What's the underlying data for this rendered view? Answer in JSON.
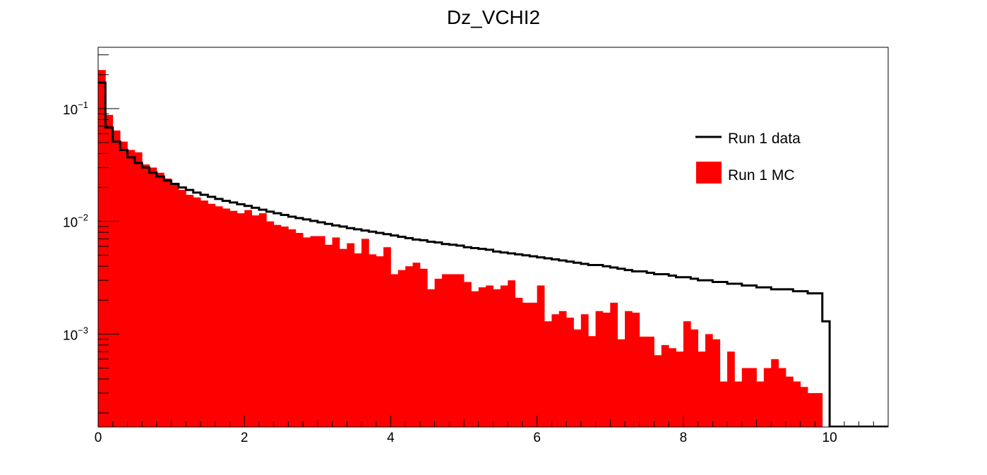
{
  "chart_data": {
    "type": "bar",
    "title": "Dz_VCHI2",
    "xlabel": "",
    "ylabel": "",
    "xlim": [
      0,
      10.8
    ],
    "ylim": [
      0.00015,
      0.35
    ],
    "yscale": "log",
    "x_ticks": [
      0,
      2,
      4,
      6,
      8,
      10
    ],
    "x_tick_labels": [
      "0",
      "2",
      "4",
      "6",
      "8",
      "10"
    ],
    "y_ticks": [
      0.001,
      0.01,
      0.1
    ],
    "y_tick_labels": [
      {
        "base": "10",
        "exp": "−3"
      },
      {
        "base": "10",
        "exp": "−2"
      },
      {
        "base": "10",
        "exp": "−1"
      }
    ],
    "bin_edges_start": 0,
    "bin_width": 0.1,
    "legend": {
      "position": "top-right",
      "entries": [
        {
          "label": "Run 1 data",
          "style": "line",
          "color": "#000000"
        },
        {
          "label": "Run 1 MC",
          "style": "fill",
          "color": "#ff0000"
        }
      ]
    },
    "series": [
      {
        "name": "Run 1 MC",
        "style": "filled-histogram",
        "color": "#ff0000",
        "values": [
          0.22,
          0.088,
          0.064,
          0.051,
          0.043,
          0.041,
          0.032,
          0.03,
          0.027,
          0.024,
          0.0215,
          0.019,
          0.0172,
          0.0163,
          0.0153,
          0.0143,
          0.0136,
          0.013,
          0.0124,
          0.0118,
          0.0126,
          0.0113,
          0.0118,
          0.01,
          0.0093,
          0.009,
          0.0085,
          0.0079,
          0.0072,
          0.0074,
          0.0074,
          0.0062,
          0.0072,
          0.0057,
          0.0064,
          0.0052,
          0.007,
          0.0051,
          0.0049,
          0.0059,
          0.0034,
          0.0037,
          0.004,
          0.0043,
          0.0038,
          0.0025,
          0.0031,
          0.0034,
          0.0034,
          0.0034,
          0.0029,
          0.0024,
          0.0026,
          0.0027,
          0.0025,
          0.0027,
          0.003,
          0.0021,
          0.0019,
          0.0019,
          0.0027,
          0.0013,
          0.0015,
          0.0016,
          0.0014,
          0.0011,
          0.0015,
          0.00096,
          0.0016,
          0.00155,
          0.0019,
          0.0009,
          0.0016,
          0.00155,
          0.00095,
          0.00095,
          0.00065,
          0.0008,
          0.00075,
          0.0007,
          0.0013,
          0.0011,
          0.0007,
          0.001,
          0.0009,
          0.00038,
          0.0007,
          0.00038,
          0.0005,
          0.0005,
          0.00038,
          0.0005,
          0.0006,
          0.0005,
          0.00042,
          0.00038,
          0.00034,
          0.0003,
          0.0003,
          0.00013
        ]
      },
      {
        "name": "Run 1 data",
        "style": "step-histogram",
        "color": "#000000",
        "values": [
          0.17,
          0.068,
          0.051,
          0.043,
          0.037,
          0.033,
          0.03,
          0.027,
          0.025,
          0.023,
          0.0215,
          0.02,
          0.019,
          0.018,
          0.0172,
          0.0165,
          0.0158,
          0.0152,
          0.0147,
          0.0142,
          0.0137,
          0.0132,
          0.0127,
          0.0122,
          0.0118,
          0.0114,
          0.011,
          0.0107,
          0.0104,
          0.0101,
          0.0098,
          0.0095,
          0.0092,
          0.009,
          0.0087,
          0.0085,
          0.0083,
          0.0081,
          0.0079,
          0.0077,
          0.0075,
          0.0073,
          0.0071,
          0.0069,
          0.0068,
          0.0066,
          0.0065,
          0.0063,
          0.0062,
          0.0061,
          0.0059,
          0.0058,
          0.0057,
          0.0056,
          0.0054,
          0.0053,
          0.0052,
          0.0051,
          0.005,
          0.0049,
          0.0048,
          0.0047,
          0.0046,
          0.0045,
          0.0044,
          0.0043,
          0.0042,
          0.0041,
          0.0041,
          0.004,
          0.0039,
          0.0038,
          0.0037,
          0.0036,
          0.0036,
          0.0035,
          0.0034,
          0.0034,
          0.0033,
          0.0032,
          0.0032,
          0.0031,
          0.003,
          0.003,
          0.0029,
          0.0029,
          0.0028,
          0.0028,
          0.0027,
          0.0027,
          0.0026,
          0.0026,
          0.0025,
          0.0025,
          0.0025,
          0.0024,
          0.0024,
          0.0023,
          0.0023,
          0.0013
        ]
      }
    ]
  }
}
